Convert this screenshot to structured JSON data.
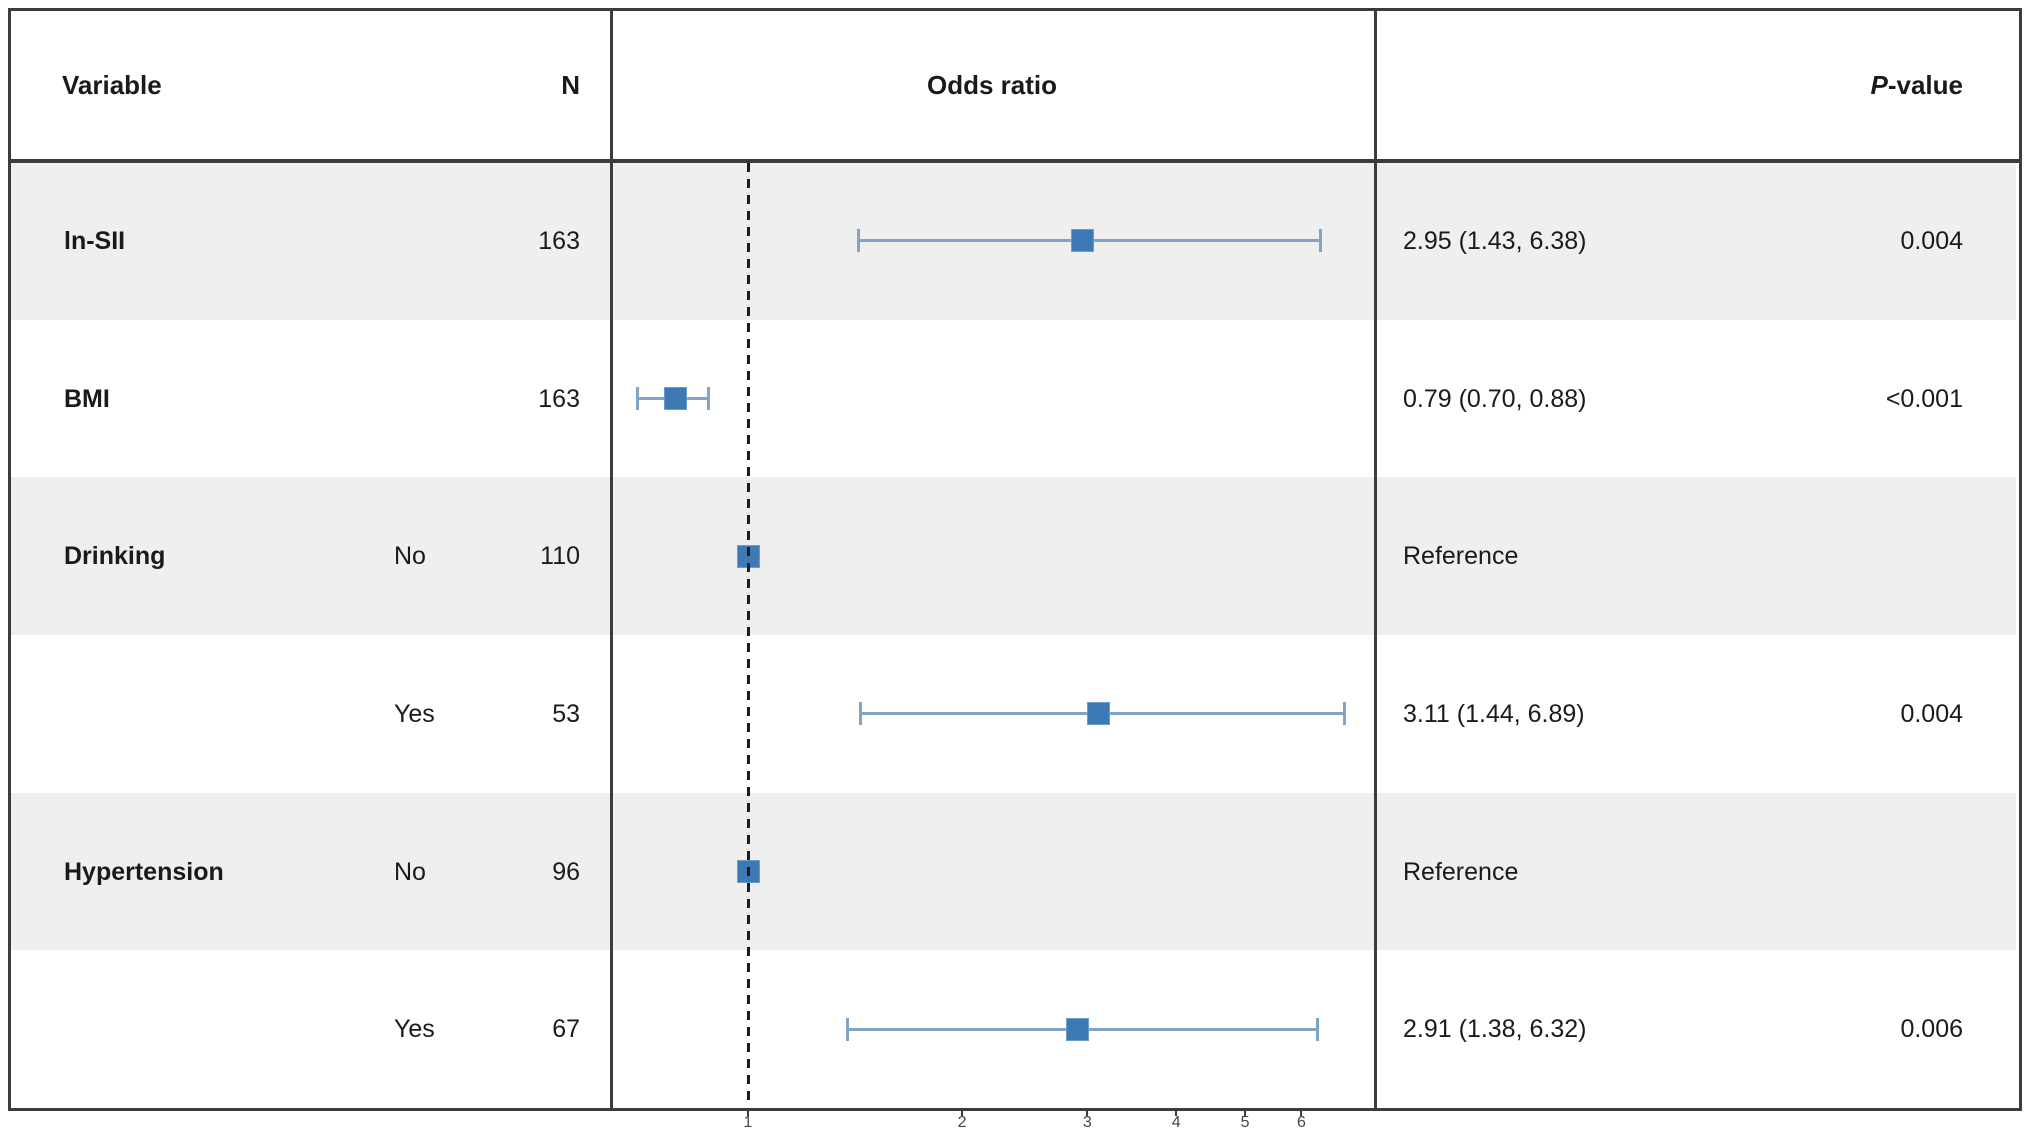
{
  "header": {
    "variable": "Variable",
    "n": "N",
    "odds_ratio": "Odds ratio",
    "p_prefix": "P",
    "p_suffix": "-value"
  },
  "chart_data": {
    "type": "forest",
    "title": "",
    "columns": [
      "Variable",
      "N",
      "Odds ratio",
      "P-value"
    ],
    "x_axis": {
      "scale": "log",
      "ticks": [
        "1",
        "2",
        "3",
        "4",
        "5",
        "6"
      ],
      "tick_values": [
        1,
        2,
        3,
        4,
        5,
        6
      ],
      "reference_line": 1,
      "xlim": [
        0.64,
        8.1
      ]
    },
    "rows": [
      {
        "variable": "ln-SII",
        "level": "",
        "n": "163",
        "or": 2.95,
        "ci_low": 1.43,
        "ci_high": 6.38,
        "or_text": "2.95 (1.43, 6.38)",
        "p_value": "0.004",
        "shade": "gray"
      },
      {
        "variable": "BMI",
        "level": "",
        "n": "163",
        "or": 0.79,
        "ci_low": 0.7,
        "ci_high": 0.88,
        "or_text": "0.79 (0.70, 0.88)",
        "p_value": "<0.001",
        "shade": "white"
      },
      {
        "variable": "Drinking",
        "level": "No",
        "n": "110",
        "or": 1.0,
        "ci_low": null,
        "ci_high": null,
        "or_text": "Reference",
        "p_value": "",
        "shade": "gray"
      },
      {
        "variable": "",
        "level": "Yes",
        "n": "53",
        "or": 3.11,
        "ci_low": 1.44,
        "ci_high": 6.89,
        "or_text": "3.11 (1.44, 6.89)",
        "p_value": "0.004",
        "shade": "white"
      },
      {
        "variable": "Hypertension",
        "level": "No",
        "n": "96",
        "or": 1.0,
        "ci_low": null,
        "ci_high": null,
        "or_text": "Reference",
        "p_value": "",
        "shade": "gray"
      },
      {
        "variable": "",
        "level": "Yes",
        "n": "67",
        "or": 2.91,
        "ci_low": 1.38,
        "ci_high": 6.32,
        "or_text": "2.91 (1.38, 6.32)",
        "p_value": "0.006",
        "shade": "white"
      }
    ],
    "legend": null,
    "grid": false,
    "colors": {
      "marker_fill": "#3c79b5",
      "marker_border": "#6d9cc8",
      "ci_line": "#82a5c6",
      "band_gray": "#efefef",
      "band_white": "#ffffff",
      "frame": "#3c3c3c",
      "dashed_line": "#1b1b1b",
      "text": "#1a1a1a",
      "tick_text": "#454545"
    }
  }
}
